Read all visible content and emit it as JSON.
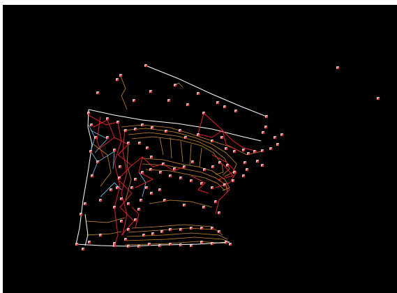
{
  "canvas": {
    "role": "cad-survey-viewport",
    "background": "#000000"
  },
  "colors": {
    "contour": "#c8892a",
    "boundary": "#ffffff",
    "breakline": "#e0202a",
    "blue_link": "#6fb3d8",
    "point_white": "#ffffff",
    "point_red": "#e0202a"
  },
  "legend_names": {
    "contours": "contour-lines",
    "boundary": "boundary-polyline",
    "breaklines": "breakline-network",
    "points": "survey-points"
  }
}
